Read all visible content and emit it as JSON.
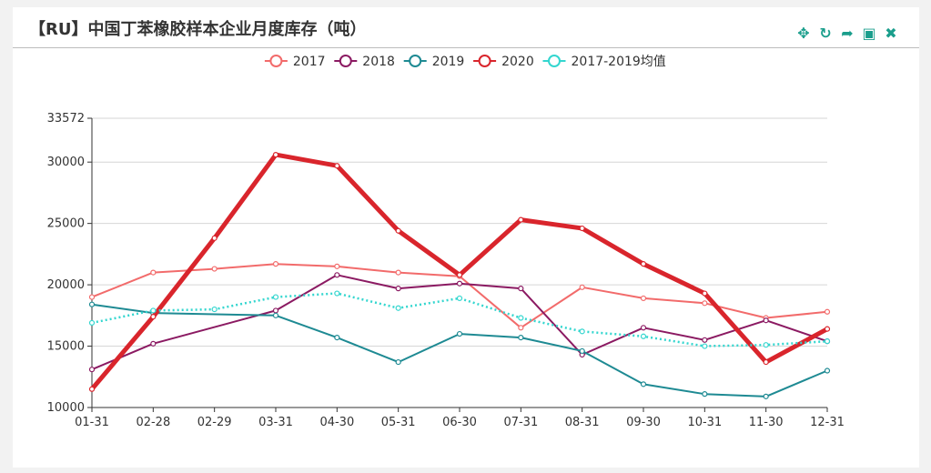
{
  "title": "【RU】中国丁苯橡胶样本企业月度库存（吨）",
  "toolbar": [
    {
      "name": "move-icon",
      "glyph": "✥"
    },
    {
      "name": "refresh-icon",
      "glyph": "↻"
    },
    {
      "name": "share-icon",
      "glyph": "➦"
    },
    {
      "name": "image-icon",
      "glyph": "▣"
    },
    {
      "name": "close-icon",
      "glyph": "✖"
    }
  ],
  "chart_data": {
    "type": "line",
    "categories": [
      "01-31",
      "02-28",
      "02-29",
      "03-31",
      "04-30",
      "05-31",
      "06-30",
      "07-31",
      "08-31",
      "09-30",
      "10-31",
      "11-30",
      "12-31"
    ],
    "ylim": [
      10000,
      33572
    ],
    "yticks": [
      10000,
      15000,
      20000,
      25000,
      30000,
      33572
    ],
    "legend_position": "top-center",
    "grid": "horizontal",
    "series": [
      {
        "name": "2017",
        "color": "#f26b6b",
        "width": 2,
        "dashed": false,
        "values": [
          19000,
          21000,
          21300,
          21700,
          21500,
          21000,
          20700,
          16500,
          19800,
          18900,
          18500,
          17300,
          17800
        ]
      },
      {
        "name": "2018",
        "color": "#8b1a62",
        "width": 2,
        "dashed": false,
        "values": [
          13100,
          15200,
          null,
          17900,
          20800,
          19700,
          20100,
          19700,
          14300,
          16500,
          15500,
          17100,
          15400
        ]
      },
      {
        "name": "2019",
        "color": "#1e8a93",
        "width": 2,
        "dashed": false,
        "values": [
          18400,
          17700,
          null,
          17500,
          15700,
          13700,
          16000,
          15700,
          14600,
          11900,
          11100,
          10900,
          13000
        ]
      },
      {
        "name": "2020",
        "color": "#d9252c",
        "width": 5,
        "dashed": false,
        "values": [
          11500,
          17400,
          23800,
          30600,
          29700,
          24400,
          20800,
          25300,
          24600,
          21700,
          19300,
          13700,
          16400
        ]
      },
      {
        "name": "2017-2019均值",
        "color": "#33d6cf",
        "width": 2.5,
        "dashed": true,
        "values": [
          16900,
          17900,
          18000,
          19000,
          19300,
          18100,
          18900,
          17300,
          16200,
          15800,
          15000,
          15100,
          15400
        ]
      }
    ]
  }
}
